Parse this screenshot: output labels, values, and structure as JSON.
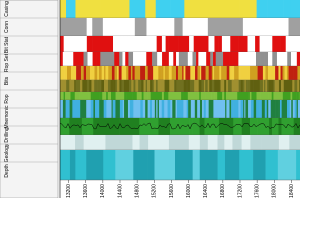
{
  "panel": {
    "row_labels": [
      "Depth",
      "Geology",
      "Drilling",
      "Mnemonic",
      "Rop",
      "Bits",
      "Rop Set",
      "Bit Stat",
      "Conn",
      "Casing"
    ]
  },
  "depth_axis": {
    "labels": [
      "13200",
      "13600",
      "14000",
      "14400",
      "14800",
      "15200",
      "15600",
      "16000",
      "16400",
      "16800",
      "17200",
      "17600",
      "18000",
      "18400"
    ]
  }
}
